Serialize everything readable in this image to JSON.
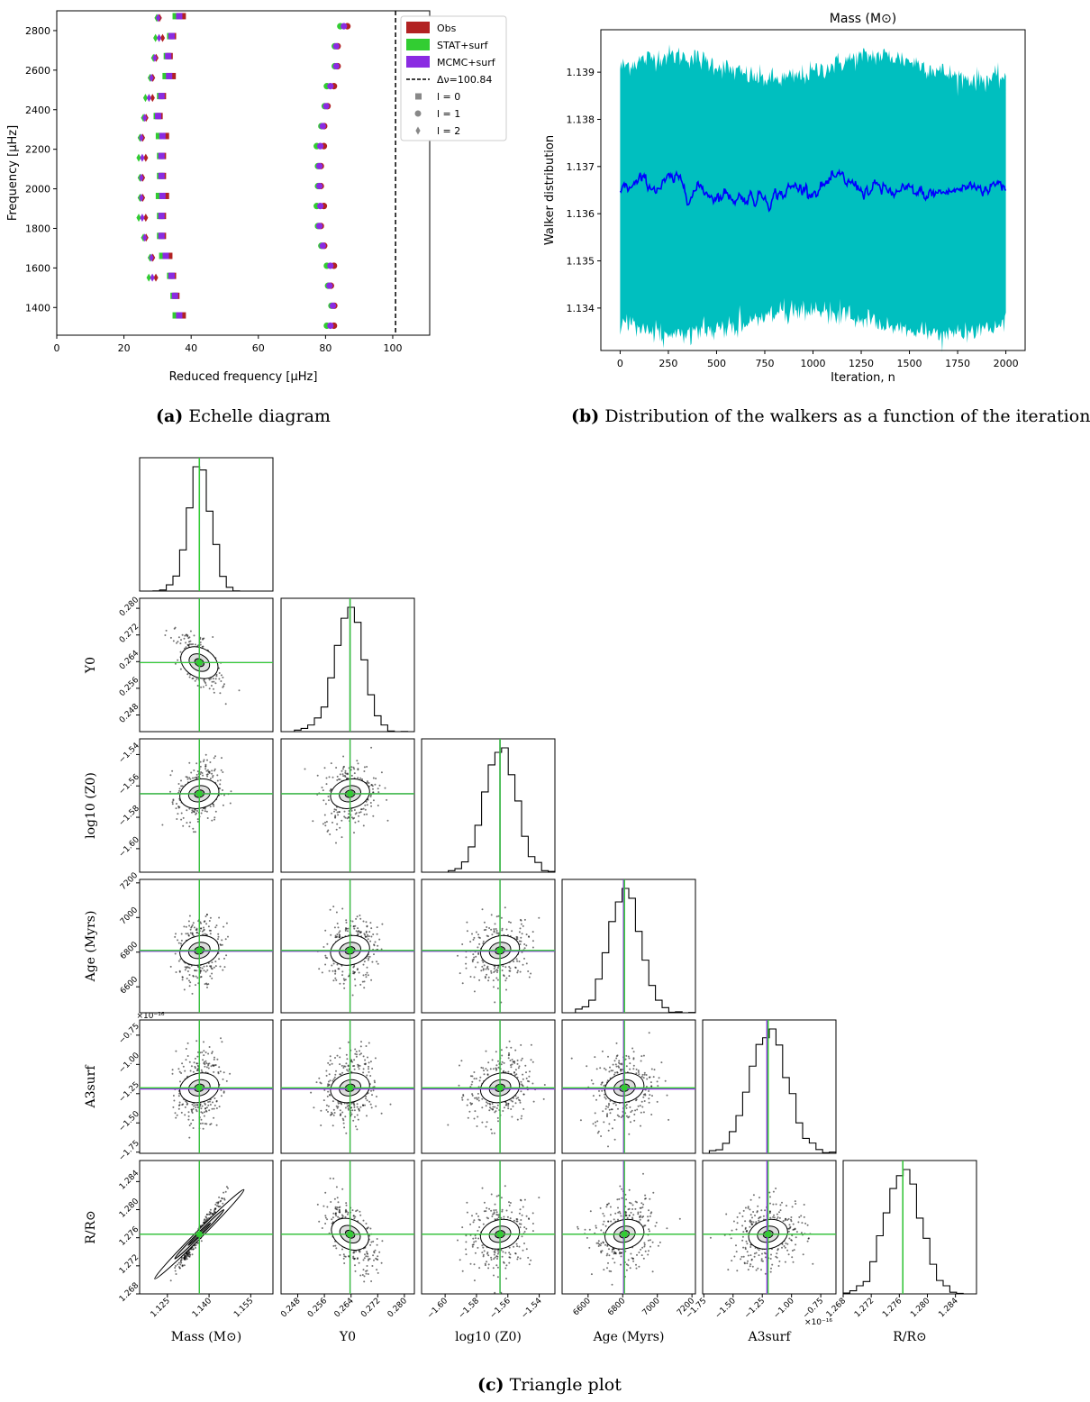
{
  "captions": {
    "a_tag": "(a)",
    "a_text": "Echelle diagram",
    "b_tag": "(b)",
    "b_text": "Distribution of the walkers as a function of the iteration",
    "c_tag": "(c)",
    "c_text": "Triangle plot"
  },
  "chart_data": [
    {
      "type": "scatter",
      "id": "echelle",
      "xlabel": "Reduced frequency [μHz]",
      "ylabel": "Frequency [μHz]",
      "xlim": [
        0,
        111
      ],
      "ylim": [
        1260,
        2900
      ],
      "xticks": [
        0,
        20,
        40,
        60,
        80,
        100
      ],
      "yticks": [
        1400,
        1600,
        1800,
        2000,
        2200,
        2400,
        2600,
        2800
      ],
      "delta_nu_line": 100.84,
      "legend": {
        "placement": "top-right",
        "entries": [
          "Obs",
          "STAT+surf",
          "MCMC+surf",
          "Δν=100.84",
          "l = 0",
          "l = 1",
          "l = 2"
        ]
      },
      "series_colors": {
        "Obs": "#b22222",
        "STAT+surf": "#32cd32",
        "MCMC+surf": "#8a2be2"
      },
      "modes": {
        "l0": [
          [
            1360,
            36
          ],
          [
            1459,
            35
          ],
          [
            1560,
            34
          ],
          [
            1661,
            32
          ],
          [
            1762,
            31
          ],
          [
            1863,
            31
          ],
          [
            1964,
            31
          ],
          [
            2065,
            31
          ],
          [
            2166,
            31
          ],
          [
            2267,
            31
          ],
          [
            2368,
            30
          ],
          [
            2469,
            31
          ],
          [
            2570,
            33
          ],
          [
            2671,
            33
          ],
          [
            2772,
            34
          ],
          [
            2873,
            36
          ]
        ],
        "l1": [
          [
            1308,
            81
          ],
          [
            1409,
            82
          ],
          [
            1510,
            81
          ],
          [
            1611,
            81
          ],
          [
            1712,
            79
          ],
          [
            1812,
            78
          ],
          [
            1913,
            78
          ],
          [
            2014,
            78
          ],
          [
            2115,
            78
          ],
          [
            2216,
            78
          ],
          [
            2317,
            79
          ],
          [
            2418,
            80
          ],
          [
            2519,
            81
          ],
          [
            2620,
            83
          ],
          [
            2721,
            83
          ],
          [
            2822,
            85
          ]
        ],
        "l2": [
          [
            1551,
            28
          ],
          [
            1652,
            28
          ],
          [
            1753,
            26
          ],
          [
            1854,
            25
          ],
          [
            1955,
            25
          ],
          [
            2056,
            25
          ],
          [
            2157,
            25
          ],
          [
            2258,
            25
          ],
          [
            2359,
            26
          ],
          [
            2460,
            27
          ],
          [
            2561,
            28
          ],
          [
            2662,
            29
          ],
          [
            2763,
            30
          ],
          [
            2864,
            30
          ]
        ]
      }
    },
    {
      "type": "area",
      "id": "walkers",
      "title": "Mass (M⊙)",
      "xlabel": "Iteration, n",
      "ylabel": "Walker distribution",
      "xlim": [
        -100,
        2100
      ],
      "ylim": [
        1.1331,
        1.1399
      ],
      "xticks": [
        0,
        250,
        500,
        750,
        1000,
        1250,
        1500,
        1750,
        2000
      ],
      "yticks": [
        1.134,
        1.135,
        1.136,
        1.137,
        1.138,
        1.139
      ],
      "band_color": "#00bfbf",
      "median_color": "#0000ff",
      "band_upper": 1.1391,
      "band_lower": 1.1337,
      "median": 1.1365,
      "iterations": 2000
    },
    {
      "type": "scatter",
      "id": "corner",
      "parameters": [
        "Mass (M⊙)",
        "Y0",
        "log10 (Z0)",
        "Age (Myrs)",
        "A3surf",
        "R/R⊙"
      ],
      "truths_green": [
        1.1365,
        0.2637,
        -1.565,
        6810,
        -1.2,
        1.2765
      ],
      "truths_purple": [
        1.1365,
        0.2637,
        -1.565,
        6805,
        -1.21,
        1.2765
      ],
      "ranges": [
        [
          1.115,
          1.163
        ],
        [
          0.243,
          0.283
        ],
        [
          -1.615,
          -1.53
        ],
        [
          6450,
          7220
        ],
        [
          -1.76,
          -0.62
        ],
        [
          1.268,
          1.287
        ]
      ],
      "ticks": [
        [
          "1.125",
          "1.140",
          "1.155"
        ],
        [
          "0.248",
          "0.256",
          "0.264",
          "0.272",
          "0.280"
        ],
        [
          "−1.60",
          "−1.58",
          "−1.56",
          "−1.54"
        ],
        [
          "6600",
          "6800",
          "7000",
          "7200"
        ],
        [
          "−1.75",
          "−1.50",
          "−1.25",
          "−1.00",
          "−0.75"
        ],
        [
          "1.268",
          "1.272",
          "1.276",
          "1.280",
          "1.284"
        ]
      ],
      "tick_values": [
        [
          1.125,
          1.14,
          1.155
        ],
        [
          0.248,
          0.256,
          0.264,
          0.272,
          0.28
        ],
        [
          -1.6,
          -1.58,
          -1.56,
          -1.54
        ],
        [
          6600,
          6800,
          7000,
          7200
        ],
        [
          -1.75,
          -1.5,
          -1.25,
          -1.0,
          -0.75
        ],
        [
          1.268,
          1.272,
          1.276,
          1.28,
          1.284
        ]
      ],
      "a3_exponent": "×10⁻¹⁶",
      "line_green": "#32cd32",
      "line_purple": "#8a2be2"
    }
  ]
}
